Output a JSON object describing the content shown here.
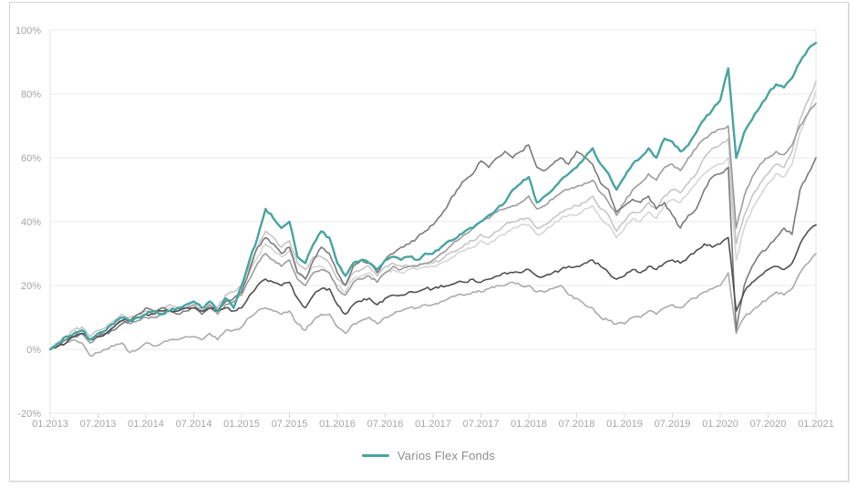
{
  "chart_data": {
    "type": "line",
    "title": "",
    "xlabel": "",
    "ylabel": "",
    "ylim": [
      -20,
      100
    ],
    "grid": "horizontal",
    "y_ticks": [
      -20,
      0,
      20,
      40,
      60,
      80,
      100
    ],
    "y_tick_labels": [
      "-20%",
      "0%",
      "20%",
      "40%",
      "60%",
      "80%",
      "100%"
    ],
    "x_tick_labels": [
      "01.2013",
      "07.2013",
      "01.2014",
      "07.2014",
      "01.2015",
      "07.2015",
      "01.2016",
      "07.2016",
      "01.2017",
      "07.2017",
      "01.2018",
      "07.2018",
      "01.2019",
      "07.2019",
      "01.2020",
      "07.2020",
      "01.2021"
    ],
    "x_unit": "monthly points from 01.2013 to 01.2021",
    "legend": {
      "position": "bottom-center",
      "entries": [
        {
          "label": "Varios Flex Fonds",
          "color": "#48a4a1"
        }
      ]
    },
    "series": [
      {
        "name": "unlabeled-comparison-2",
        "color": "#d6d6d6",
        "width": 1.6,
        "values": [
          0,
          1,
          3,
          5,
          6,
          3,
          5,
          6,
          8,
          10,
          9,
          10,
          11,
          10,
          12,
          13,
          12,
          13,
          14,
          12,
          14,
          12,
          15,
          16,
          18,
          24,
          29,
          33,
          31,
          29,
          31,
          24,
          22,
          26,
          26,
          24,
          20,
          18,
          22,
          23,
          24,
          21,
          24,
          25,
          24,
          25,
          25,
          26,
          26,
          27,
          28,
          30,
          31,
          32,
          34,
          33,
          35,
          36,
          38,
          39,
          39,
          36,
          37,
          39,
          41,
          42,
          42,
          44,
          45,
          41,
          39,
          35,
          38,
          41,
          40,
          43,
          41,
          45,
          47,
          46,
          49,
          52,
          55,
          57,
          58,
          60,
          28,
          38,
          44,
          48,
          52,
          55,
          54,
          58,
          68,
          74,
          81
        ]
      },
      {
        "name": "unlabeled-comparison-1",
        "color": "#c6c6c6",
        "width": 1.6,
        "values": [
          0,
          2,
          4,
          6,
          7,
          4,
          6,
          7,
          9,
          11,
          10,
          11,
          12,
          11,
          13,
          14,
          13,
          14,
          15,
          13,
          15,
          13,
          17,
          18,
          20,
          26,
          32,
          37,
          35,
          32,
          34,
          27,
          25,
          29,
          29,
          27,
          22,
          20,
          24,
          25,
          26,
          23,
          26,
          27,
          26,
          26,
          26,
          27,
          27,
          28,
          30,
          31,
          33,
          34,
          36,
          35,
          37,
          39,
          40,
          41,
          41,
          38,
          39,
          41,
          43,
          44,
          45,
          46,
          48,
          44,
          42,
          37,
          40,
          43,
          43,
          46,
          44,
          48,
          50,
          49,
          52,
          55,
          60,
          63,
          64,
          66,
          33,
          42,
          48,
          52,
          55,
          58,
          57,
          62,
          72,
          78,
          84
        ]
      },
      {
        "name": "unlabeled-comparison-6",
        "color": "#ababab",
        "width": 1.6,
        "values": [
          0,
          1,
          2,
          3,
          2,
          -2,
          -1,
          0,
          1,
          2,
          -1,
          0,
          2,
          1,
          2,
          3,
          3,
          4,
          4,
          3,
          5,
          3,
          6,
          6,
          7,
          10,
          12,
          13,
          12,
          11,
          12,
          8,
          6,
          9,
          11,
          11,
          7,
          5,
          8,
          9,
          10,
          8,
          10,
          11,
          12,
          13,
          13,
          14,
          14,
          15,
          16,
          17,
          17,
          18,
          18,
          19,
          20,
          20,
          21,
          20,
          20,
          18,
          18,
          19,
          20,
          17,
          16,
          14,
          13,
          10,
          9,
          8,
          8,
          10,
          10,
          12,
          11,
          13,
          14,
          13,
          15,
          16,
          18,
          19,
          20,
          24,
          5,
          10,
          12,
          14,
          16,
          18,
          17,
          19,
          24,
          27,
          30
        ]
      },
      {
        "name": "unlabeled-comparison-3",
        "color": "#9c9c9c",
        "width": 1.6,
        "values": [
          0,
          1,
          3,
          4,
          5,
          2,
          4,
          5,
          7,
          9,
          8,
          9,
          10,
          10,
          11,
          12,
          12,
          13,
          14,
          12,
          14,
          11,
          14,
          15,
          17,
          22,
          27,
          30,
          28,
          26,
          28,
          22,
          20,
          24,
          25,
          24,
          19,
          17,
          21,
          22,
          23,
          21,
          24,
          26,
          25,
          26,
          26,
          27,
          28,
          30,
          32,
          34,
          36,
          38,
          40,
          41,
          43,
          44,
          45,
          46,
          48,
          44,
          45,
          47,
          49,
          50,
          51,
          52,
          53,
          49,
          46,
          42,
          46,
          50,
          52,
          55,
          53,
          57,
          58,
          56,
          60,
          63,
          66,
          68,
          69,
          70,
          38,
          48,
          54,
          58,
          60,
          62,
          61,
          64,
          70,
          74,
          77
        ]
      },
      {
        "name": "unlabeled-comparison-4",
        "color": "#7a7a7a",
        "width": 1.6,
        "values": [
          0,
          1,
          3,
          4,
          5,
          3,
          4,
          5,
          6,
          8,
          9,
          11,
          13,
          12,
          13,
          12,
          11,
          12,
          13,
          11,
          13,
          12,
          15,
          16,
          18,
          25,
          32,
          35,
          33,
          30,
          32,
          24,
          22,
          28,
          32,
          30,
          24,
          20,
          26,
          28,
          27,
          24,
          28,
          30,
          32,
          33,
          35,
          37,
          39,
          42,
          46,
          50,
          53,
          55,
          59,
          57,
          60,
          62,
          60,
          62,
          64,
          57,
          56,
          58,
          60,
          58,
          62,
          60,
          58,
          52,
          50,
          43,
          45,
          47,
          46,
          48,
          44,
          46,
          42,
          38,
          42,
          44,
          50,
          54,
          55,
          57,
          6,
          20,
          26,
          30,
          32,
          35,
          38,
          36,
          50,
          55,
          60
        ]
      },
      {
        "name": "unlabeled-comparison-5",
        "color": "#4f4f4f",
        "width": 1.6,
        "values": [
          0,
          1,
          2,
          4,
          5,
          3,
          4,
          5,
          7,
          9,
          9,
          10,
          11,
          11,
          12,
          12,
          12,
          13,
          13,
          12,
          13,
          12,
          13,
          12,
          13,
          17,
          20,
          22,
          21,
          20,
          21,
          16,
          13,
          17,
          19,
          19,
          14,
          11,
          14,
          15,
          16,
          14,
          16,
          17,
          17,
          18,
          18,
          19,
          19,
          20,
          20,
          21,
          21,
          22,
          21,
          22,
          23,
          24,
          24,
          24,
          25,
          23,
          23,
          24,
          25,
          26,
          26,
          27,
          28,
          26,
          24,
          22,
          23,
          25,
          24,
          26,
          25,
          27,
          28,
          27,
          29,
          31,
          33,
          32,
          33,
          35,
          12,
          18,
          21,
          23,
          25,
          26,
          25,
          27,
          33,
          37,
          39
        ]
      },
      {
        "name": "Varios Flex Fonds",
        "color": "#48a4a1",
        "width": 2.4,
        "values": [
          0,
          2,
          4,
          5,
          6,
          3,
          5,
          6,
          8,
          10,
          9,
          10,
          11,
          12,
          11,
          12,
          13,
          14,
          15,
          13,
          15,
          12,
          16,
          13,
          20,
          28,
          35,
          44,
          41,
          38,
          40,
          29,
          27,
          33,
          37,
          35,
          27,
          23,
          27,
          28,
          27,
          25,
          28,
          29,
          28,
          29,
          28,
          30,
          30,
          32,
          34,
          35,
          37,
          38,
          40,
          42,
          44,
          46,
          50,
          52,
          54,
          46,
          48,
          50,
          53,
          55,
          57,
          60,
          63,
          58,
          55,
          50,
          54,
          58,
          60,
          63,
          60,
          66,
          65,
          62,
          64,
          68,
          72,
          75,
          78,
          88,
          60,
          68,
          72,
          76,
          80,
          83,
          82,
          85,
          90,
          94,
          96
        ]
      }
    ],
    "styles": {
      "gridline_color": "#eaeaea",
      "axis_edge_color": "#e5e5e5",
      "tick_mark_color": "#d8d8d8",
      "tick_label_color": "#a6a6a6",
      "card_border_color": "#d4d4d4",
      "background": "#ffffff"
    }
  }
}
